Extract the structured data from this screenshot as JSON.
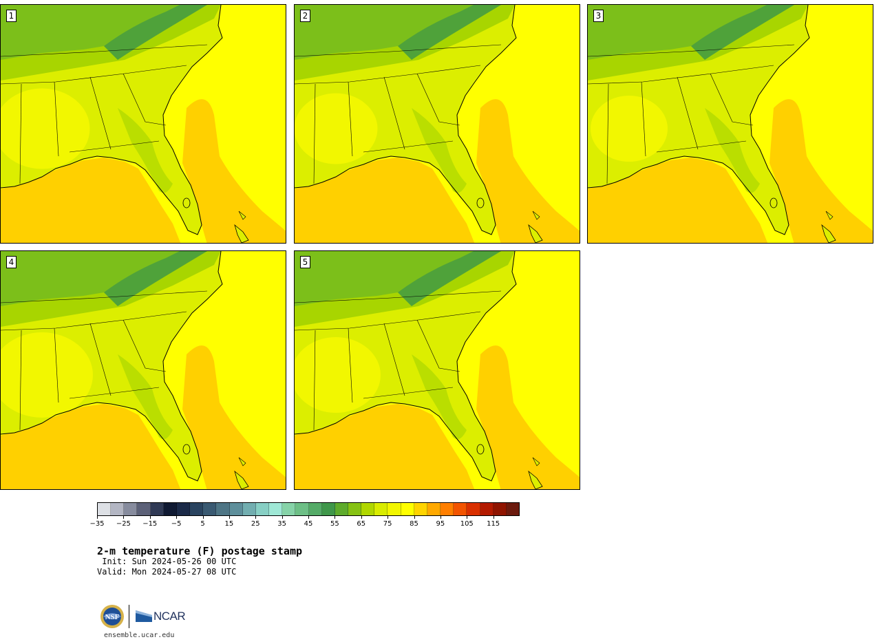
{
  "figure": {
    "title": "2-m temperature (F) postage stamp",
    "init_line": " Init: Sun 2024-05-26 00 UTC",
    "valid_line": "Valid: Mon 2024-05-27 08 UTC",
    "website": "ensemble.ucar.edu",
    "logos": [
      "nsf-logo",
      "ncar-logo"
    ],
    "ncar_text": "NCAR"
  },
  "panels": [
    {
      "label": "1",
      "inland_warm_extent": 0.55
    },
    {
      "label": "2",
      "inland_warm_extent": 0.45
    },
    {
      "label": "3",
      "inland_warm_extent": 0.4
    },
    {
      "label": "4",
      "inland_warm_extent": 0.6
    },
    {
      "label": "5",
      "inland_warm_extent": 0.5
    }
  ],
  "colorbar": {
    "unit": "F",
    "tick_labels": [
      "−35",
      "−25",
      "−15",
      "−5",
      "5",
      "15",
      "25",
      "35",
      "45",
      "55",
      "65",
      "75",
      "85",
      "95",
      "105",
      "115"
    ],
    "colors": [
      "#dde0e5",
      "#b3b6c3",
      "#878c9e",
      "#5c6178",
      "#303a55",
      "#101a33",
      "#1b2a48",
      "#2a4460",
      "#3a5a72",
      "#4e7585",
      "#5e8f9b",
      "#72aeb0",
      "#87cfc4",
      "#9fe8d6",
      "#86d3a8",
      "#6dbf86",
      "#54ab67",
      "#3f974a",
      "#5eab2c",
      "#86c214",
      "#b0d700",
      "#d9ec00",
      "#f2f600",
      "#ffff00",
      "#ffd400",
      "#ffa900",
      "#ff7f00",
      "#f25400",
      "#d93000",
      "#b31a00",
      "#8f1400",
      "#6b1a0e"
    ]
  }
}
